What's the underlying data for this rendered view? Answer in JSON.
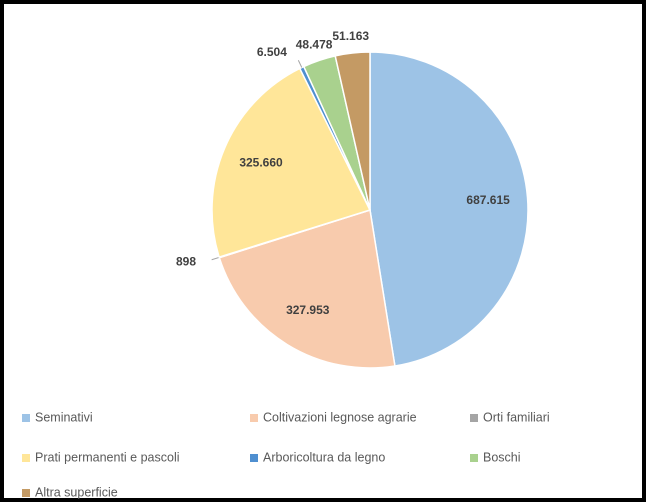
{
  "chart_data": {
    "type": "pie",
    "categories": [
      "Seminativi",
      "Coltivazioni legnose agrarie",
      "Orti familiari",
      "Prati permanenti e pascoli",
      "Arboricoltura da legno",
      "Boschi",
      "Altra superficie"
    ],
    "values": [
      687615,
      327953,
      898,
      325660,
      6504,
      48478,
      51163
    ],
    "value_labels": [
      "687.615",
      "327.953",
      "898",
      "325.660",
      "6.504",
      "48.478",
      "51.163"
    ],
    "colors": [
      "#9dc3e6",
      "#f8cbad",
      "#a5a5a5",
      "#ffe699",
      "#4f8fd0",
      "#a9d18e",
      "#c49a64"
    ],
    "legend": "bottom"
  }
}
